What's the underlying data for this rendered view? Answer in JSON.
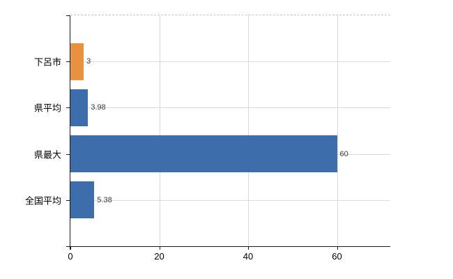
{
  "chart_data": {
    "type": "bar",
    "orientation": "horizontal",
    "title": "",
    "xlabel": "",
    "ylabel": "",
    "categories": [
      "下呂市",
      "県平均",
      "県最大",
      "全国平均"
    ],
    "values": [
      3,
      3.98,
      60,
      5.38
    ],
    "value_labels": [
      "3",
      "3.98",
      "60",
      "5.38"
    ],
    "bar_colors": [
      "#EA9140",
      "#3D6DAA",
      "#3D6DAA",
      "#3D6DAA"
    ],
    "x_ticks": [
      0,
      20,
      40,
      60
    ],
    "x_tick_labels": [
      "0",
      "20",
      "40",
      "60"
    ],
    "xlim": [
      0,
      72
    ],
    "grid": true,
    "legend": false
  },
  "colors": {
    "bar_blue": "#3D6DAA",
    "bar_orange": "#EA9140",
    "horizontal_grid": "#D9DED9",
    "vertical_grid": "#D8D8D8",
    "top_border": "#C6C6C6",
    "axis": "#1A1A1A",
    "value_label_text": "#3A3A3A",
    "tick_label_text": "#000000",
    "background": "#FFFFFF"
  }
}
